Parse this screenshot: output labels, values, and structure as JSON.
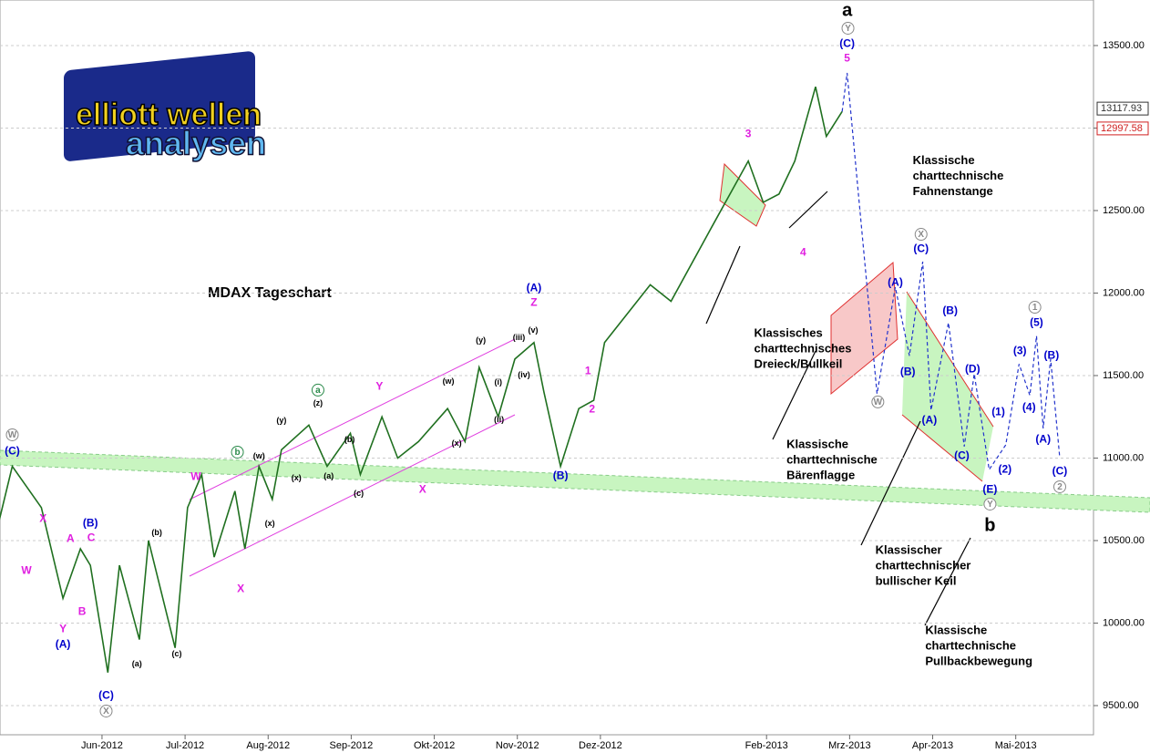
{
  "chart_data": {
    "type": "line",
    "title": "MDAX Tageschart",
    "logo": [
      "elliott",
      "wellen",
      "analysen"
    ],
    "xlim": [
      4.772,
      17.936
    ],
    "xticks": [
      {
        "value": 6,
        "label": "Jun-2012"
      },
      {
        "value": 7,
        "label": "Jul-2012"
      },
      {
        "value": 8,
        "label": "Aug-2012"
      },
      {
        "value": 9,
        "label": "Sep-2012"
      },
      {
        "value": 10,
        "label": "Okt-2012"
      },
      {
        "value": 11,
        "label": "Nov-2012"
      },
      {
        "value": 12,
        "label": "Dez-2012"
      },
      {
        "value": 14,
        "label": "Feb-2013"
      },
      {
        "value": 15,
        "label": "Mrz-2013"
      },
      {
        "value": 16,
        "label": "Apr-2013"
      },
      {
        "value": 17,
        "label": "Mai-2013"
      }
    ],
    "ylim": [
      9290,
      13776
    ],
    "yticks": [
      {
        "value": 9500,
        "label": "9500.00"
      },
      {
        "value": 10000,
        "label": "10000.00"
      },
      {
        "value": 10500,
        "label": "10500.00"
      },
      {
        "value": 11000,
        "label": "11000.00"
      },
      {
        "value": 11500,
        "label": "11500.00"
      },
      {
        "value": 12000,
        "label": "12000.00"
      },
      {
        "value": 12500,
        "label": "12500.00"
      },
      {
        "value": 13000,
        "label": "13000.00"
      },
      {
        "value": 13500,
        "label": "13500.00"
      }
    ],
    "grid": true,
    "price_labels": [
      {
        "value": 13117.93,
        "label": "13117.93",
        "color": "#333333"
      },
      {
        "value": 12997.58,
        "label": "12997.58",
        "color": "#d02020"
      }
    ],
    "series": [
      {
        "color": "#207020",
        "dashed": false,
        "x": [
          4.68,
          4.92,
          5.27,
          5.53,
          5.74,
          5.86,
          6.07,
          6.21,
          6.45,
          6.56,
          6.88,
          7.03,
          7.2,
          7.35,
          7.6,
          7.72,
          7.89,
          8.05,
          8.16,
          8.49,
          8.71,
          8.99,
          9.11,
          9.37,
          9.56,
          9.81,
          10.16,
          10.37,
          10.54,
          10.77,
          10.97,
          11.2,
          11.32,
          11.52,
          11.74,
          11.92,
          12.05,
          12.6,
          12.85,
          13.34,
          13.78,
          13.96,
          14.15,
          14.34,
          14.59,
          14.72,
          14.91
        ],
        "values": [
          10450,
          10950,
          10700,
          10150,
          10450,
          10350,
          9700,
          10350,
          9900,
          10500,
          9850,
          10700,
          10900,
          10400,
          10800,
          10450,
          10950,
          10750,
          11050,
          11200,
          10950,
          11150,
          10900,
          11250,
          11000,
          11100,
          11300,
          11100,
          11550,
          11250,
          11600,
          11700,
          11400,
          10950,
          11300,
          11350,
          11700,
          12050,
          11950,
          12400,
          12800,
          12550,
          12600,
          12800,
          13250,
          12950,
          13100
        ]
      },
      {
        "color": "#2233cc",
        "dashed": true,
        "x": [
          14.91,
          14.97,
          15.33,
          15.55,
          15.72,
          15.88,
          15.98,
          16.19,
          16.38,
          16.5,
          16.68,
          16.88,
          17.04,
          17.17,
          17.25,
          17.33,
          17.42,
          17.53
        ],
        "values": [
          13100,
          13334,
          11390,
          12036,
          11620,
          12190,
          11290,
          11820,
          11070,
          11510,
          10930,
          11080,
          11570,
          11380,
          11740,
          11180,
          11600,
          11000
        ]
      }
    ],
    "annotations": [
      {
        "text": "a",
        "x": 14.97,
        "y": 13710,
        "color": "#000000",
        "size": 20
      },
      {
        "text": "b",
        "x": 16.69,
        "y": 10590,
        "color": "#000000",
        "size": 20
      },
      {
        "lines": [
          "Klassische",
          "charttechnische",
          "Fahnenstange"
        ],
        "x": 15.76,
        "y": 12800,
        "color": "#000000",
        "size": 13
      },
      {
        "lines": [
          "Klassisches",
          "charttechnisches",
          "Dreieck/Bullkeil"
        ],
        "x": 13.85,
        "y": 11754,
        "color": "#000000",
        "size": 13
      },
      {
        "lines": [
          "Klassische",
          "charttechnische",
          "Bärenflagge"
        ],
        "x": 14.24,
        "y": 11080,
        "color": "#000000",
        "size": 13
      },
      {
        "lines": [
          "Klassischer",
          "charttechnischer",
          "bullischer Keil"
        ],
        "x": 15.31,
        "y": 10440,
        "color": "#000000",
        "size": 13
      },
      {
        "lines": [
          "Klassische",
          "charttechnische",
          "Pullbackbewegung"
        ],
        "x": 15.91,
        "y": 9953,
        "color": "#000000",
        "size": 13
      },
      {
        "text": "(C)",
        "x": 14.97,
        "y": 13511,
        "color": "#0000cc"
      },
      {
        "text": "5",
        "x": 14.97,
        "y": 13422,
        "color": "#e020e0"
      },
      {
        "text": "(A)",
        "x": 15.55,
        "y": 12064,
        "color": "#0000cc"
      },
      {
        "text": "(B)",
        "x": 15.7,
        "y": 11522,
        "color": "#0000cc"
      },
      {
        "text": "(C)",
        "x": 15.86,
        "y": 12268,
        "color": "#0000cc"
      },
      {
        "text": "(A)",
        "x": 15.96,
        "y": 11230,
        "color": "#0000cc"
      },
      {
        "text": "(B)",
        "x": 16.21,
        "y": 11892,
        "color": "#0000cc"
      },
      {
        "text": "(C)",
        "x": 16.35,
        "y": 11014,
        "color": "#0000cc"
      },
      {
        "text": "(D)",
        "x": 16.48,
        "y": 11539,
        "color": "#0000cc"
      },
      {
        "text": "(E)",
        "x": 16.69,
        "y": 10809,
        "color": "#0000cc"
      },
      {
        "text": "(1)",
        "x": 16.79,
        "y": 11279,
        "color": "#0000cc"
      },
      {
        "text": "(2)",
        "x": 16.87,
        "y": 10931,
        "color": "#0000cc"
      },
      {
        "text": "(3)",
        "x": 17.05,
        "y": 11649,
        "color": "#0000cc"
      },
      {
        "text": "(4)",
        "x": 17.16,
        "y": 11307,
        "color": "#0000cc"
      },
      {
        "text": "(5)",
        "x": 17.25,
        "y": 11820,
        "color": "#0000cc"
      },
      {
        "text": "(A)",
        "x": 17.33,
        "y": 11113,
        "color": "#0000cc"
      },
      {
        "text": "(B)",
        "x": 17.43,
        "y": 11621,
        "color": "#0000cc"
      },
      {
        "text": "(C)",
        "x": 17.53,
        "y": 10920,
        "color": "#0000cc"
      },
      {
        "text": "X",
        "x": 15.86,
        "y": 12356,
        "color": "#888888",
        "circle": true
      },
      {
        "text": "W",
        "x": 15.34,
        "y": 11340,
        "color": "#888888",
        "circle": true
      },
      {
        "text": "Y",
        "x": 16.69,
        "y": 10721,
        "color": "#888888",
        "circle": true
      },
      {
        "text": "1",
        "x": 17.23,
        "y": 11914,
        "color": "#888888",
        "circle": true
      },
      {
        "text": "2",
        "x": 17.53,
        "y": 10826,
        "color": "#888888",
        "circle": true
      },
      {
        "text": "Y",
        "x": 14.98,
        "y": 13605,
        "color": "#888888",
        "circle": true
      },
      {
        "text": "W",
        "x": 4.92,
        "y": 11141,
        "color": "#888888",
        "circle": true
      },
      {
        "text": "X",
        "x": 6.05,
        "y": 9467,
        "color": "#888888",
        "circle": true
      },
      {
        "text": "(C)",
        "x": 4.92,
        "y": 11041,
        "color": "#0000cc"
      },
      {
        "text": "(A)",
        "x": 5.53,
        "y": 9870,
        "color": "#0000cc"
      },
      {
        "text": "(B)",
        "x": 5.86,
        "y": 10605,
        "color": "#0000cc"
      },
      {
        "text": "(C)",
        "x": 6.05,
        "y": 9561,
        "color": "#0000cc"
      },
      {
        "text": "(B)",
        "x": 11.52,
        "y": 10892,
        "color": "#0000cc"
      },
      {
        "text": "(A)",
        "x": 11.2,
        "y": 12030,
        "color": "#0000cc"
      },
      {
        "text": "X",
        "x": 5.29,
        "y": 10633,
        "color": "#e020e0"
      },
      {
        "text": "A",
        "x": 5.62,
        "y": 10511,
        "color": "#e020e0"
      },
      {
        "text": "W",
        "x": 5.09,
        "y": 10318,
        "color": "#e020e0"
      },
      {
        "text": "C",
        "x": 5.87,
        "y": 10517,
        "color": "#e020e0"
      },
      {
        "text": "B",
        "x": 5.76,
        "y": 10069,
        "color": "#e020e0"
      },
      {
        "text": "Y",
        "x": 5.53,
        "y": 9964,
        "color": "#e020e0"
      },
      {
        "text": "W",
        "x": 7.13,
        "y": 10887,
        "color": "#e020e0"
      },
      {
        "text": "X",
        "x": 7.67,
        "y": 10207,
        "color": "#e020e0"
      },
      {
        "text": "Y",
        "x": 9.34,
        "y": 11434,
        "color": "#e020e0"
      },
      {
        "text": "X",
        "x": 9.86,
        "y": 10809,
        "color": "#e020e0"
      },
      {
        "text": "Z",
        "x": 11.2,
        "y": 11942,
        "color": "#e020e0"
      },
      {
        "text": "1",
        "x": 11.85,
        "y": 11528,
        "color": "#e020e0"
      },
      {
        "text": "2",
        "x": 11.9,
        "y": 11296,
        "color": "#e020e0"
      },
      {
        "text": "3",
        "x": 13.78,
        "y": 12964,
        "color": "#e020e0"
      },
      {
        "text": "4",
        "x": 14.44,
        "y": 12246,
        "color": "#e020e0"
      },
      {
        "text": "(y)",
        "x": 8.16,
        "y": 11229,
        "color": "#000000",
        "size": 9
      },
      {
        "text": "(w)",
        "x": 7.89,
        "y": 11014,
        "color": "#000000",
        "size": 9
      },
      {
        "text": "(x)",
        "x": 8.02,
        "y": 10605,
        "color": "#000000",
        "size": 9
      },
      {
        "text": "(z)",
        "x": 8.6,
        "y": 11334,
        "color": "#000000",
        "size": 9
      },
      {
        "text": "(a)",
        "x": 8.73,
        "y": 10892,
        "color": "#000000",
        "size": 9
      },
      {
        "text": "(b)",
        "x": 8.98,
        "y": 11113,
        "color": "#000000",
        "size": 9
      },
      {
        "text": "(c)",
        "x": 9.09,
        "y": 10787,
        "color": "#000000",
        "size": 9
      },
      {
        "text": "(x)",
        "x": 8.34,
        "y": 10881,
        "color": "#000000",
        "size": 9
      },
      {
        "text": "(w)",
        "x": 10.17,
        "y": 11467,
        "color": "#000000",
        "size": 9
      },
      {
        "text": "(x)",
        "x": 10.27,
        "y": 11091,
        "color": "#000000",
        "size": 9
      },
      {
        "text": "(y)",
        "x": 10.56,
        "y": 11716,
        "color": "#000000",
        "size": 9
      },
      {
        "text": "(i)",
        "x": 10.77,
        "y": 11461,
        "color": "#000000",
        "size": 9
      },
      {
        "text": "(ii)",
        "x": 10.78,
        "y": 11235,
        "color": "#000000",
        "size": 9
      },
      {
        "text": "(iii)",
        "x": 11.02,
        "y": 11732,
        "color": "#000000",
        "size": 9
      },
      {
        "text": "(iv)",
        "x": 11.08,
        "y": 11505,
        "color": "#000000",
        "size": 9
      },
      {
        "text": "(v)",
        "x": 11.19,
        "y": 11776,
        "color": "#000000",
        "size": 9
      },
      {
        "text": "(b)",
        "x": 6.66,
        "y": 10550,
        "color": "#000000",
        "size": 9
      },
      {
        "text": "(a)",
        "x": 6.42,
        "y": 9754,
        "color": "#000000",
        "size": 9
      },
      {
        "text": "(c)",
        "x": 6.9,
        "y": 9815,
        "color": "#000000",
        "size": 9
      },
      {
        "text": "a",
        "x": 8.6,
        "y": 11412,
        "color": "#2a8a4a",
        "circle": true
      },
      {
        "text": "b",
        "x": 7.63,
        "y": 11036,
        "color": "#2a8a4a",
        "circle": true
      }
    ]
  }
}
